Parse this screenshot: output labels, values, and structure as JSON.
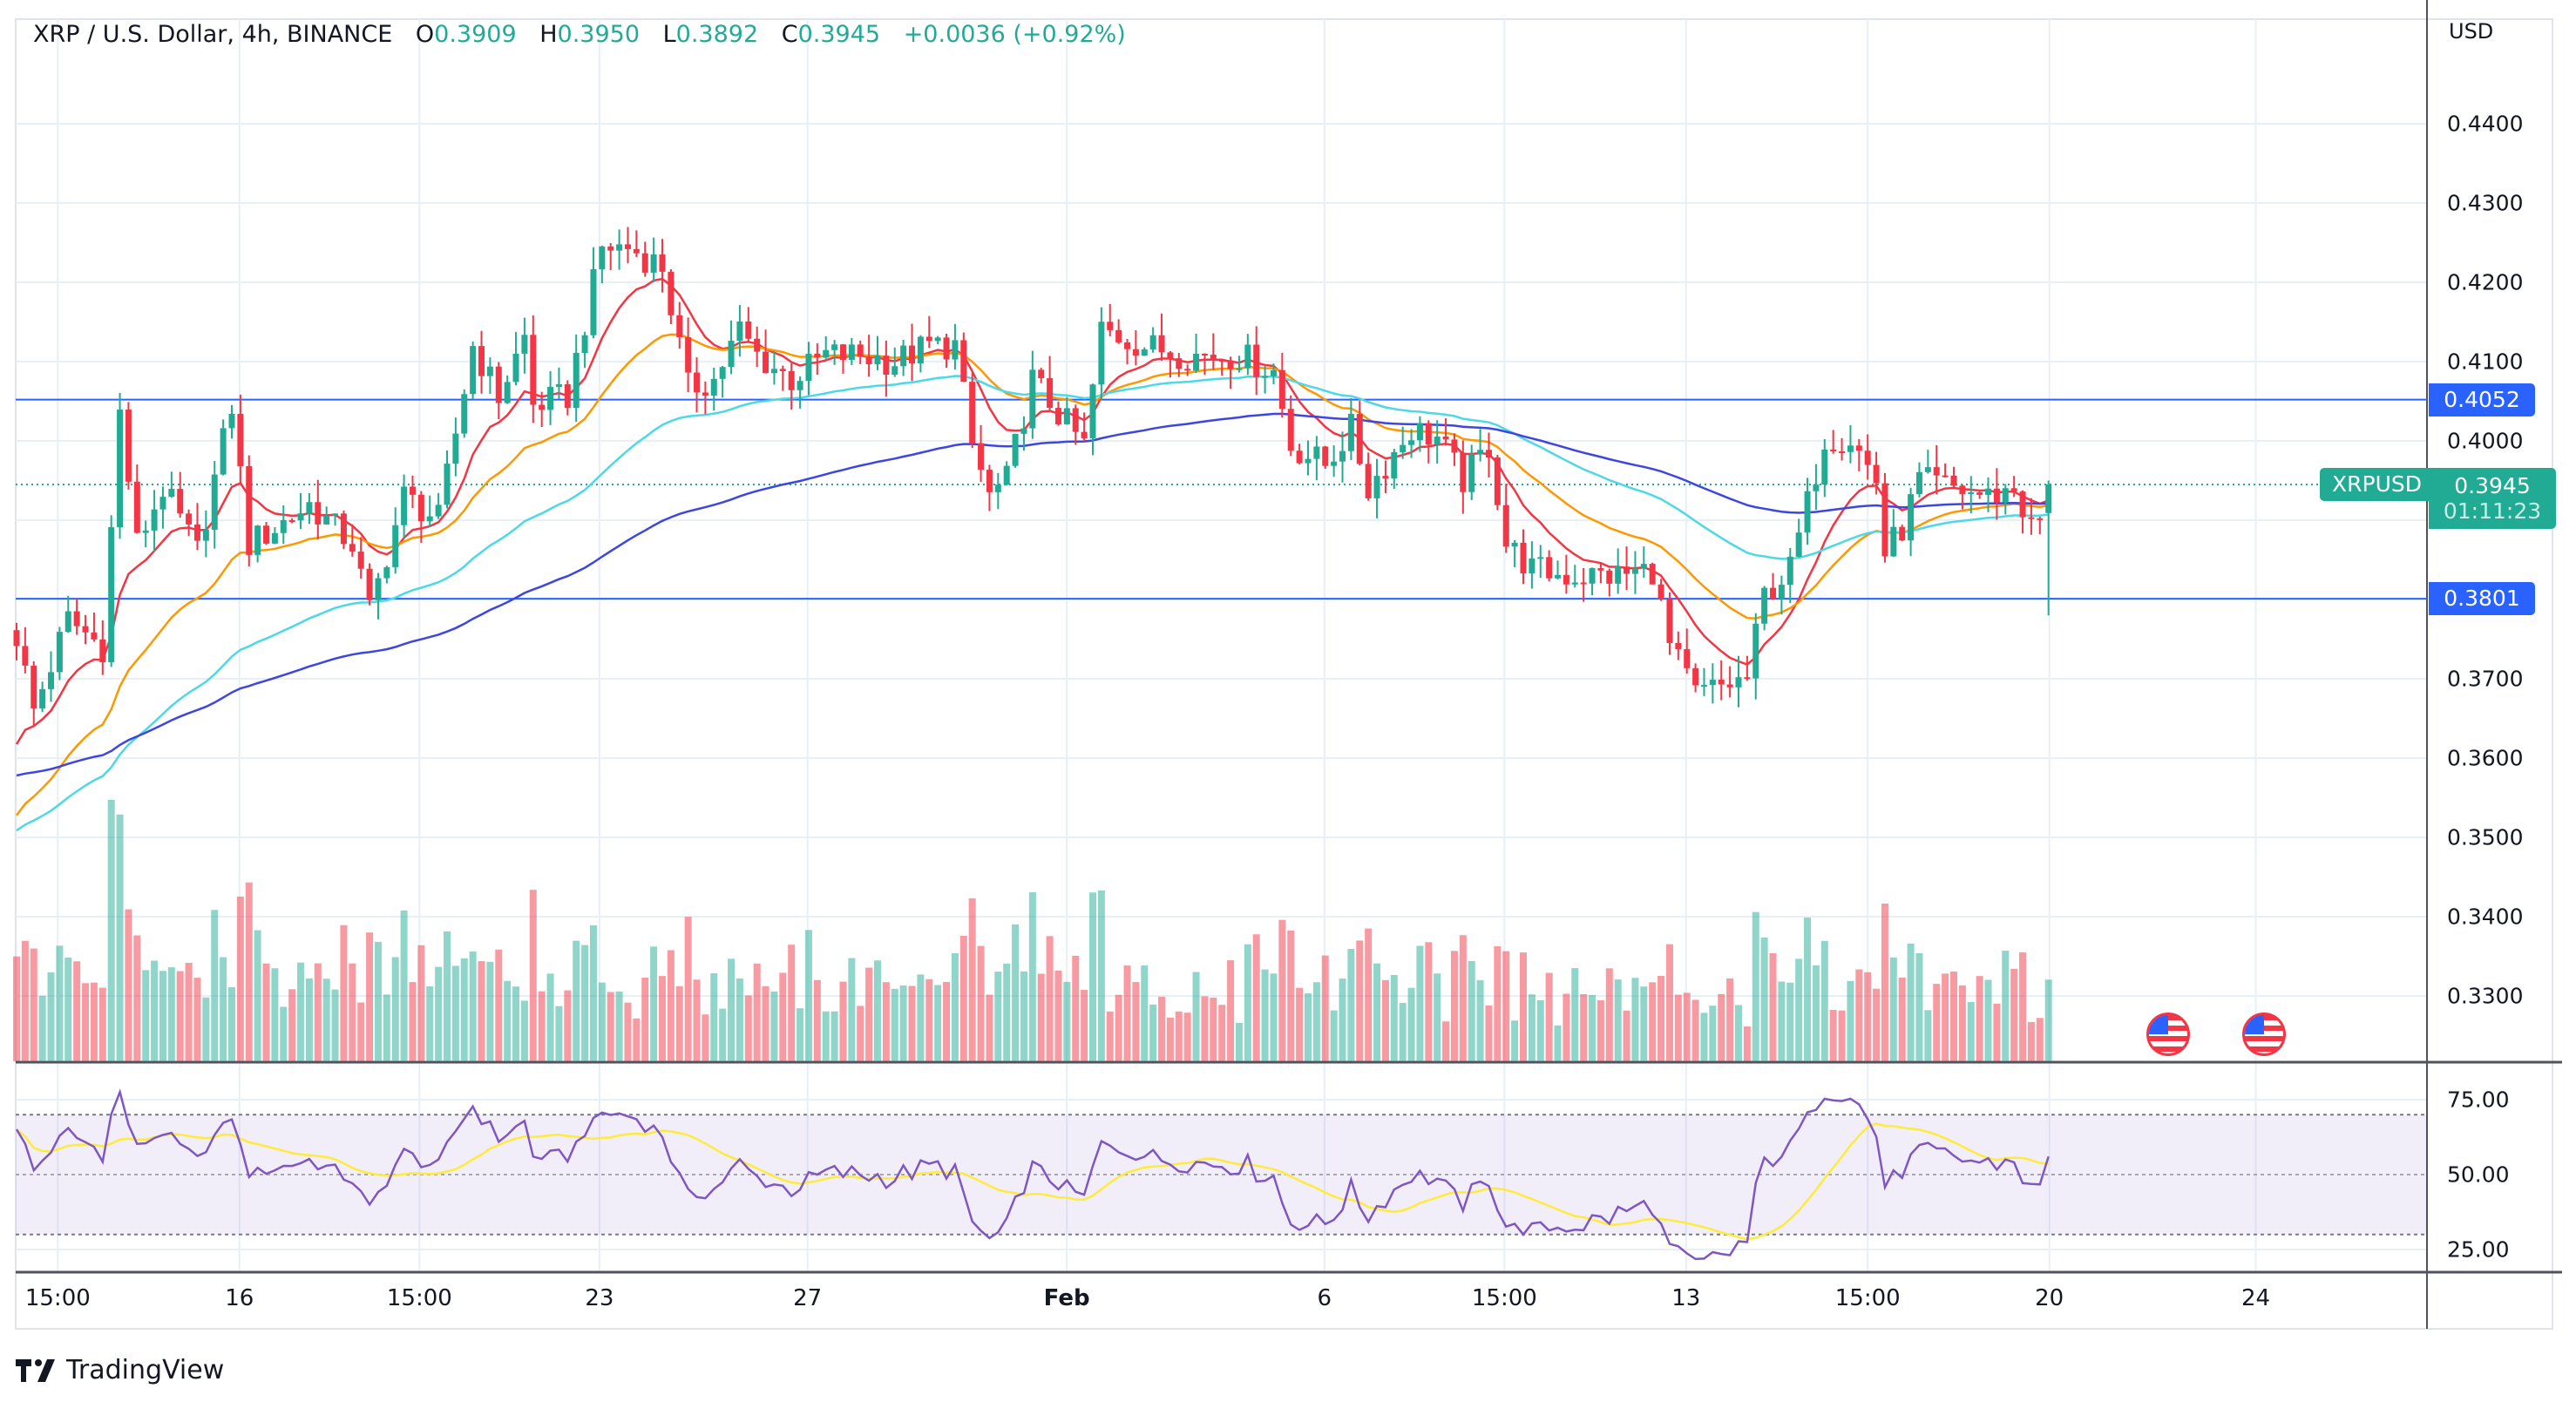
{
  "header": {
    "symbol_title": "XRP / U.S. Dollar, 4h, BINANCE",
    "open_key": "O",
    "open": "0.3909",
    "high_key": "H",
    "high": "0.3950",
    "low_key": "L",
    "low": "0.3892",
    "close_key": "C",
    "close": "0.3945",
    "change": "+0.0036 (+0.92%)"
  },
  "price_axis": {
    "currency": "USD",
    "ticks": [
      "0.4400",
      "0.4300",
      "0.4200",
      "0.4100",
      "0.4000",
      "0.3700",
      "0.3600",
      "0.3500",
      "0.3400",
      "0.3300"
    ],
    "tick_values": [
      0.44,
      0.43,
      0.42,
      0.41,
      0.4,
      0.37,
      0.36,
      0.35,
      0.34,
      0.33
    ],
    "grid_values": [
      0.44,
      0.43,
      0.42,
      0.41,
      0.4,
      0.39,
      0.38,
      0.37,
      0.36,
      0.35,
      0.34,
      0.33
    ]
  },
  "horizontal_lines": [
    {
      "label": "0.4052",
      "value": 0.4052,
      "color": "#2962ff"
    },
    {
      "label": "0.3801",
      "value": 0.3801,
      "color": "#2962ff"
    }
  ],
  "current_price": {
    "symbol": "XRPUSD",
    "price": "0.3945",
    "value": 0.3945,
    "countdown": "01:11:23",
    "color": "#22ab94"
  },
  "time_axis": {
    "labels": [
      {
        "text": "15:00",
        "bold": false
      },
      {
        "text": "16",
        "bold": false
      },
      {
        "text": "15:00",
        "bold": false
      },
      {
        "text": "23",
        "bold": false
      },
      {
        "text": "27",
        "bold": false
      },
      {
        "text": "Feb",
        "bold": true
      },
      {
        "text": "6",
        "bold": false
      },
      {
        "text": "15:00",
        "bold": false
      },
      {
        "text": "13",
        "bold": false
      },
      {
        "text": "15:00",
        "bold": false
      },
      {
        "text": "20",
        "bold": false
      },
      {
        "text": "24",
        "bold": false
      }
    ]
  },
  "rsi_pane": {
    "ticks": [
      "75.00",
      "50.00",
      "25.00"
    ],
    "tick_values": [
      75,
      50,
      25
    ],
    "upper_band": 70,
    "lower_band": 30,
    "middle": 50,
    "rsi_color": "#7e57c2",
    "ma_color": "#ffeb3b"
  },
  "events": [
    {
      "icon": "us-flag-icon"
    },
    {
      "icon": "us-flag-icon"
    }
  ],
  "branding": {
    "logo_text": "TradingView"
  },
  "chart_data": {
    "type": "candlestick",
    "title": "XRP / U.S. Dollar, 4h, BINANCE",
    "interval": "4h",
    "bar_count": 237,
    "ylim": [
      0.325,
      0.446
    ],
    "up_color": "#22ab94",
    "down_color": "#f23645",
    "approx_close_by_bar": [
      [
        0,
        0.3754
      ],
      [
        2,
        0.366
      ],
      [
        6,
        0.3775
      ],
      [
        10,
        0.374
      ],
      [
        12,
        0.4035
      ],
      [
        14,
        0.387
      ],
      [
        17,
        0.394
      ],
      [
        21,
        0.386
      ],
      [
        25,
        0.4045
      ],
      [
        27,
        0.387
      ],
      [
        30,
        0.389
      ],
      [
        34,
        0.392
      ],
      [
        39,
        0.387
      ],
      [
        41,
        0.3785
      ],
      [
        45,
        0.393
      ],
      [
        49,
        0.39
      ],
      [
        53,
        0.412
      ],
      [
        56,
        0.4056
      ],
      [
        59,
        0.413
      ],
      [
        60,
        0.4045
      ],
      [
        64,
        0.4056
      ],
      [
        68,
        0.4244
      ],
      [
        71,
        0.4244
      ],
      [
        75,
        0.422
      ],
      [
        78,
        0.4067
      ],
      [
        81,
        0.4077
      ],
      [
        84,
        0.414
      ],
      [
        86,
        0.4108
      ],
      [
        90,
        0.4077
      ],
      [
        94,
        0.4108
      ],
      [
        98,
        0.4108
      ],
      [
        102,
        0.41
      ],
      [
        106,
        0.412
      ],
      [
        109,
        0.412
      ],
      [
        111,
        0.3994
      ],
      [
        113,
        0.393
      ],
      [
        115,
        0.395
      ],
      [
        118,
        0.4077
      ],
      [
        121,
        0.4035
      ],
      [
        124,
        0.3994
      ],
      [
        126,
        0.414
      ],
      [
        131,
        0.412
      ],
      [
        136,
        0.4108
      ],
      [
        142,
        0.4108
      ],
      [
        146,
        0.4088
      ],
      [
        148,
        0.3994
      ],
      [
        152,
        0.397
      ],
      [
        155,
        0.4015
      ],
      [
        157,
        0.394
      ],
      [
        162,
        0.4015
      ],
      [
        165,
        0.4004
      ],
      [
        168,
        0.395
      ],
      [
        171,
        0.3994
      ],
      [
        173,
        0.387
      ],
      [
        176,
        0.3838
      ],
      [
        180,
        0.383
      ],
      [
        186,
        0.383
      ],
      [
        190,
        0.3838
      ],
      [
        192,
        0.374
      ],
      [
        195,
        0.368
      ],
      [
        198,
        0.369
      ],
      [
        201,
        0.37
      ],
      [
        203,
        0.3806
      ],
      [
        206,
        0.3838
      ],
      [
        208,
        0.392
      ],
      [
        210,
        0.4004
      ],
      [
        213,
        0.4004
      ],
      [
        216,
        0.395
      ],
      [
        217,
        0.3858
      ],
      [
        219,
        0.389
      ],
      [
        221,
        0.395
      ],
      [
        225,
        0.394
      ],
      [
        229,
        0.393
      ],
      [
        232,
        0.394
      ],
      [
        234,
        0.389
      ],
      [
        235,
        0.39
      ],
      [
        236,
        0.3945
      ]
    ],
    "last_bar": {
      "open": 0.3909,
      "high": 0.395,
      "low": 0.3892,
      "close": 0.3945
    },
    "moving_averages": [
      {
        "color": "#f23645"
      },
      {
        "color": "#ff9800"
      },
      {
        "color": "#4dd8e8"
      },
      {
        "color": "#3d46e0"
      }
    ]
  }
}
